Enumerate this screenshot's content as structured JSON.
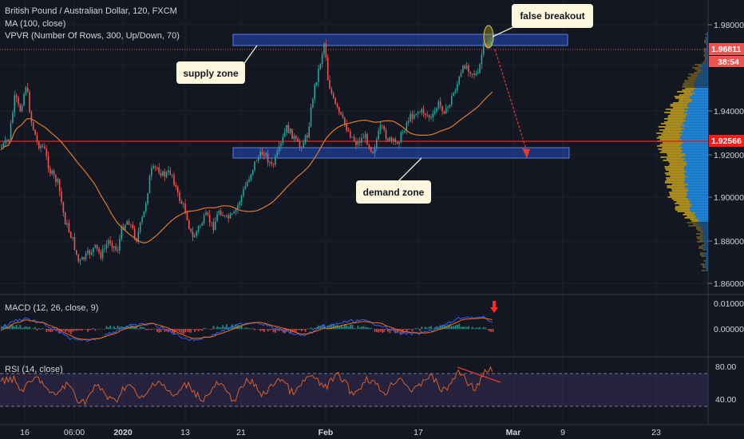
{
  "header": {
    "symbol_line": "British Pound / Australian Dollar, 120, FXCM",
    "ma_line": "MA (100, close)",
    "vpvr_line": "VPVR (Number Of Rows, 300, Up/Down, 70)",
    "macd_line": "MACD (12, 26, close, 9)",
    "rsi_line": "RSI (14, close)"
  },
  "annotations": {
    "supply": "supply zone",
    "demand": "demand zone",
    "breakout": "false breakout"
  },
  "price_tags": {
    "current": "1.96811",
    "countdown": "38:54",
    "level": "1.92566"
  },
  "colors": {
    "background": "#131722",
    "up": "#26a69a",
    "down": "#ef5350",
    "ma": "#e07a2e",
    "zone_fill": "#2962ff",
    "level_line": "#ff1a1a",
    "vpvr_up": "#2196f3",
    "vpvr_down": "#c8a21e",
    "rsi_line": "#d4602a",
    "macd_line": "#2962ff",
    "signal_line": "#ff6d00"
  },
  "chart_data": [
    {
      "type": "candlestick",
      "panel": "price",
      "ylim": [
        1.855,
        1.985
      ],
      "yticks": [
        "1.98000",
        "1.96000",
        "1.94000",
        "1.92000",
        "1.90000",
        "1.88000",
        "1.86000"
      ],
      "xticks": [
        "16",
        "06:00",
        "2020",
        "13",
        "21",
        "Feb",
        "17",
        "Mar",
        "9",
        "23"
      ],
      "horizontal_levels": [
        1.92566
      ],
      "zones": [
        {
          "name": "supply zone",
          "from": 1.972,
          "to": 1.977
        },
        {
          "name": "demand zone",
          "from": 1.9185,
          "to": 1.923
        }
      ],
      "ma_period": 100
    },
    {
      "type": "line",
      "panel": "MACD",
      "yticks": [
        "0.01000",
        "0.00000"
      ]
    },
    {
      "type": "line",
      "panel": "RSI",
      "yticks": [
        "80.00",
        "40.00"
      ],
      "bands": [
        70,
        30
      ]
    }
  ]
}
